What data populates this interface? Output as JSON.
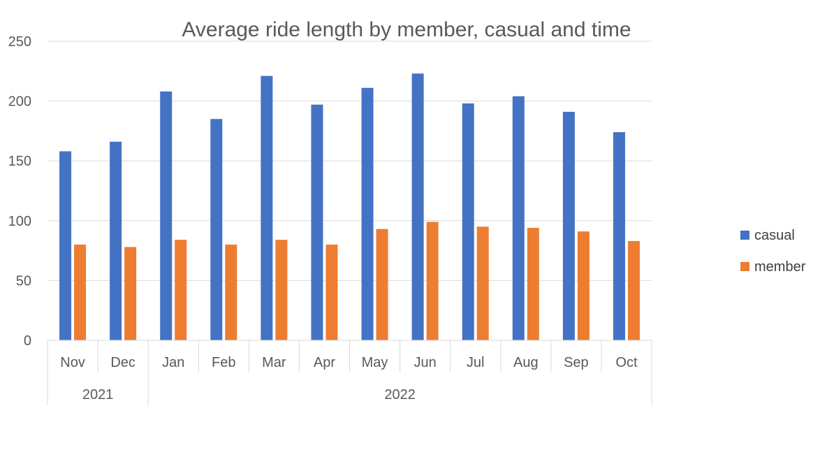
{
  "chart_data": {
    "type": "bar",
    "title": "Average ride length by member, casual and time",
    "xlabel": "",
    "ylabel": "",
    "ylim": [
      0,
      250
    ],
    "yticks": [
      0,
      50,
      100,
      150,
      200,
      250
    ],
    "grid": true,
    "legend_position": "right",
    "categories": [
      "Nov",
      "Dec",
      "Jan",
      "Feb",
      "Mar",
      "Apr",
      "May",
      "Jun",
      "Jul",
      "Aug",
      "Sep",
      "Oct"
    ],
    "category_groups": [
      {
        "label": "2021",
        "count": 2
      },
      {
        "label": "2022",
        "count": 10
      }
    ],
    "series": [
      {
        "name": "casual",
        "color": "#4472c4",
        "values": [
          158,
          166,
          208,
          185,
          221,
          197,
          211,
          223,
          198,
          204,
          191,
          174
        ]
      },
      {
        "name": "member",
        "color": "#ed7d31",
        "values": [
          80,
          78,
          84,
          80,
          84,
          80,
          93,
          99,
          95,
          94,
          91,
          83
        ]
      }
    ]
  }
}
